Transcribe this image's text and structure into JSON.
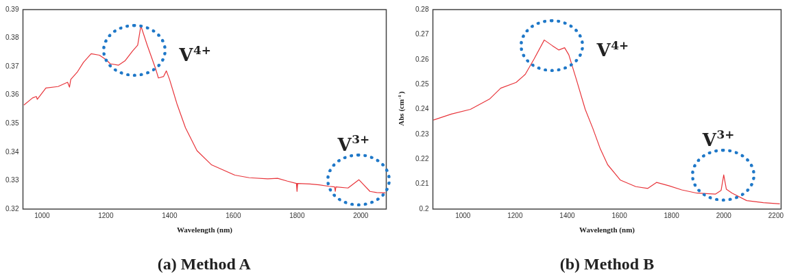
{
  "chart_data": [
    {
      "type": "line",
      "title": "(a) Method A",
      "xlabel": "Wavelength (nm)",
      "xlim": [
        940,
        2080
      ],
      "xticks": [
        1000,
        1200,
        1400,
        1600,
        1800,
        2000
      ],
      "ylim": [
        0.32,
        0.39
      ],
      "yticks": [
        0.32,
        0.33,
        0.34,
        0.35,
        0.36,
        0.37,
        0.38,
        0.39
      ],
      "grid": false,
      "legend": false,
      "marker": "none",
      "line_style": "solid",
      "series": [
        {
          "color": "#e8343a",
          "x": [
            943,
            970,
            982,
            985,
            1012,
            1050,
            1080,
            1086,
            1090,
            1110,
            1130,
            1154,
            1180,
            1200,
            1214,
            1240,
            1260,
            1284,
            1300,
            1310,
            1330,
            1357,
            1365,
            1381,
            1390,
            1400,
            1423,
            1450,
            1486,
            1532,
            1605,
            1650,
            1708,
            1739,
            1770,
            1798,
            1800,
            1802,
            1840,
            1869,
            1900,
            1918,
            1920,
            1922,
            1960,
            1994,
            2029,
            2050,
            2077
          ],
          "values": [
            0.3565,
            0.359,
            0.3595,
            0.3585,
            0.3625,
            0.363,
            0.3645,
            0.3628,
            0.3655,
            0.368,
            0.3715,
            0.3745,
            0.374,
            0.3725,
            0.371,
            0.3705,
            0.372,
            0.3755,
            0.3775,
            0.3843,
            0.3775,
            0.369,
            0.366,
            0.3665,
            0.3685,
            0.3655,
            0.357,
            0.3485,
            0.3405,
            0.3355,
            0.3319,
            0.331,
            0.3306,
            0.3308,
            0.3298,
            0.329,
            0.3262,
            0.329,
            0.3288,
            0.3285,
            0.328,
            0.3278,
            0.3262,
            0.3278,
            0.3274,
            0.3303,
            0.3262,
            0.3258,
            0.3257
          ]
        }
      ],
      "annotations": [
        {
          "text": "V$^{4+}$",
          "x": 1290,
          "y": 0.3757
        },
        {
          "text": "V$^{3+}$",
          "x": 1994,
          "y": 0.3303
        }
      ]
    },
    {
      "type": "line",
      "title": "(b) Method B",
      "xlabel": "Wavelength (nm)",
      "ylabel": "Abs (cm$^{-1}$)",
      "xlim": [
        885,
        2220
      ],
      "xticks": [
        1000,
        1200,
        1400,
        1600,
        1800,
        2000,
        2200
      ],
      "ylim": [
        0.2,
        0.28
      ],
      "yticks": [
        0.2,
        0.21,
        0.22,
        0.23,
        0.24,
        0.25,
        0.26,
        0.27,
        0.28
      ],
      "grid": false,
      "legend": false,
      "marker": "none",
      "line_style": "solid",
      "series": [
        {
          "color": "#e8343a",
          "x": [
            887,
            956,
            1029,
            1102,
            1145,
            1204,
            1239,
            1273,
            1312,
            1342,
            1368,
            1390,
            1406,
            1435,
            1469,
            1498,
            1527,
            1555,
            1604,
            1663,
            1709,
            1743,
            1789,
            1839,
            1897,
            1968,
            1990,
            2000,
            2010,
            2032,
            2088,
            2152,
            2215
          ],
          "values": [
            0.2357,
            0.2381,
            0.24,
            0.2441,
            0.2485,
            0.2508,
            0.254,
            0.2602,
            0.2678,
            0.2656,
            0.2638,
            0.2647,
            0.2619,
            0.252,
            0.24,
            0.2324,
            0.2241,
            0.2178,
            0.2116,
            0.209,
            0.2083,
            0.2107,
            0.2094,
            0.2077,
            0.2064,
            0.206,
            0.2075,
            0.2137,
            0.208,
            0.2064,
            0.2034,
            0.2026,
            0.2021
          ]
        }
      ],
      "annotations": [
        {
          "text": "V$^{4+}$",
          "x": 1342,
          "y": 0.2656
        },
        {
          "text": "V$^{3+}$",
          "x": 2000,
          "y": 0.2137
        }
      ]
    }
  ]
}
